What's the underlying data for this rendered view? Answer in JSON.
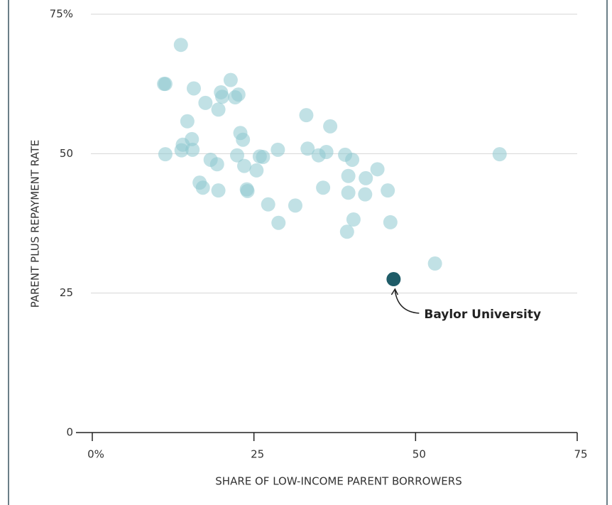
{
  "chart_data": {
    "type": "scatter",
    "xlabel": "SHARE OF LOW-INCOME PARENT BORROWERS",
    "ylabel": "PARENT PLUS REPAYMENT RATE",
    "xlim": [
      0,
      75
    ],
    "ylim": [
      0,
      75
    ],
    "xticks": [
      {
        "value": 0,
        "label": "0%"
      },
      25,
      50,
      75
    ],
    "yticks": [
      0,
      25,
      50,
      {
        "value": 75,
        "label": "75%"
      }
    ],
    "grid": true,
    "color": "#8ec9cf",
    "x": [
      13.7,
      11.1,
      11.3,
      15.7,
      21.4,
      19.9,
      20.1,
      22.1,
      22.6,
      17.5,
      19.5,
      14.7,
      15.4,
      14.0,
      13.8,
      15.5,
      11.3,
      22.9,
      23.3,
      22.4,
      25.9,
      26.4,
      28.7,
      18.3,
      19.3,
      23.5,
      25.4,
      16.6,
      17.1,
      19.5,
      23.9,
      24.0,
      27.2,
      28.8,
      31.4,
      33.1,
      33.3,
      35.0,
      36.2,
      36.8,
      35.7,
      39.1,
      40.2,
      39.6,
      39.6,
      40.4,
      39.4,
      42.3,
      42.2,
      44.1,
      45.7,
      46.1,
      53.0,
      63.0
    ],
    "y": [
      69.5,
      62.5,
      62.5,
      61.7,
      63.2,
      61.0,
      60.2,
      60.1,
      60.6,
      59.1,
      57.9,
      55.8,
      52.6,
      51.6,
      50.6,
      50.7,
      49.9,
      53.7,
      52.5,
      49.7,
      49.5,
      49.4,
      50.7,
      48.9,
      48.1,
      47.8,
      47.0,
      44.8,
      43.9,
      43.4,
      43.6,
      43.3,
      40.9,
      37.6,
      40.7,
      56.9,
      50.9,
      49.7,
      50.3,
      54.9,
      43.9,
      49.8,
      48.9,
      46.0,
      43.0,
      38.2,
      36.0,
      45.6,
      42.7,
      47.2,
      43.4,
      37.7,
      30.3,
      49.9
    ],
    "highlight": {
      "label": "Baylor University",
      "x": 46.6,
      "y": 27.5,
      "color": "#1f5c68"
    }
  }
}
